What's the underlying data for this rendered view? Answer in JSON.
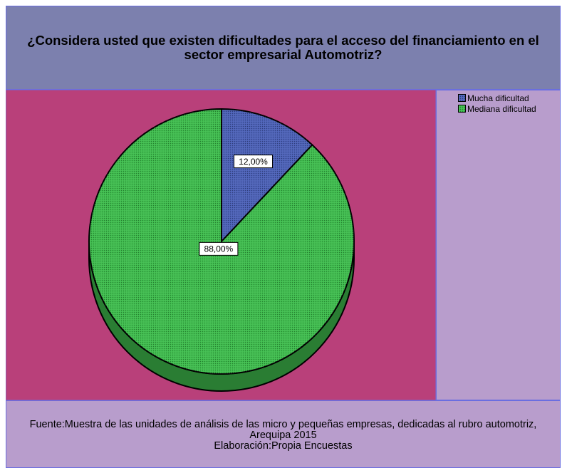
{
  "chart_data": {
    "type": "pie",
    "title": "¿Considera usted que existen dificultades para el acceso del financiamiento en el sector empresarial Automotriz?",
    "categories": [
      "Mucha dificultad",
      "Mediana dificultad"
    ],
    "values": [
      12,
      88
    ],
    "value_labels": [
      "12,00%",
      "88,00%"
    ],
    "colors": [
      "#4a5fb5",
      "#3dbb4c"
    ],
    "legend": "top-right",
    "source": "Fuente:Muestra de las unidades de análisis de las micro y pequeñas empresas, dedicadas al rubro automotriz, Arequipa 2015",
    "credit": "Elaboración:Propia Encuestas"
  }
}
